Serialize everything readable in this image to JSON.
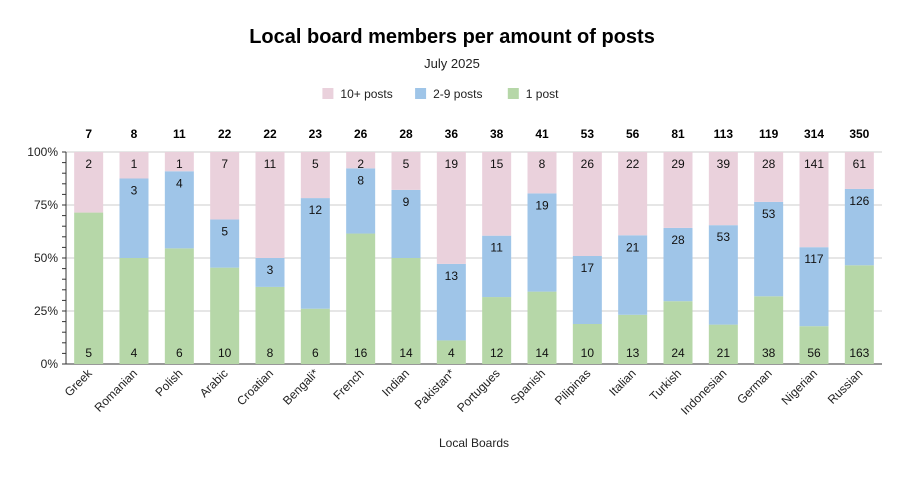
{
  "chart_data": {
    "type": "bar",
    "stacked": "percent",
    "title": "Local board members per amount of posts",
    "subtitle": "July 2025",
    "xlabel": "Local Boards",
    "ylabel": "",
    "ylim": [
      0,
      100
    ],
    "y_ticks": [
      "0%",
      "25%",
      "50%",
      "75%",
      "100%"
    ],
    "legend_position": "top",
    "grid": true,
    "categories": [
      "Greek",
      "Romanian",
      "Polish",
      "Arabic",
      "Croatian",
      "Bengali*",
      "French",
      "Indian",
      "Pakistan*",
      "Portugues",
      "Spanish",
      "Pilipinas",
      "Italian",
      "Turkish",
      "Indonesian",
      "German",
      "Nigerian",
      "Russian"
    ],
    "totals": [
      7,
      8,
      11,
      22,
      22,
      23,
      26,
      28,
      36,
      38,
      41,
      53,
      56,
      81,
      113,
      119,
      314,
      350
    ],
    "series": [
      {
        "name": "1 post",
        "color": "#b6d7a8",
        "values": [
          5,
          4,
          6,
          10,
          8,
          6,
          16,
          14,
          4,
          12,
          14,
          10,
          13,
          24,
          21,
          38,
          56,
          163
        ]
      },
      {
        "name": "2-9 posts",
        "color": "#9fc5e8",
        "values": [
          0,
          3,
          4,
          5,
          3,
          12,
          8,
          9,
          13,
          11,
          19,
          17,
          21,
          28,
          53,
          53,
          117,
          126
        ]
      },
      {
        "name": "10+ posts",
        "color": "#ead1dc",
        "values": [
          2,
          1,
          1,
          7,
          11,
          5,
          2,
          5,
          19,
          15,
          8,
          26,
          22,
          29,
          39,
          28,
          141,
          61
        ]
      }
    ],
    "legend_order": [
      "10+ posts",
      "2-9 posts",
      "1 post"
    ]
  }
}
